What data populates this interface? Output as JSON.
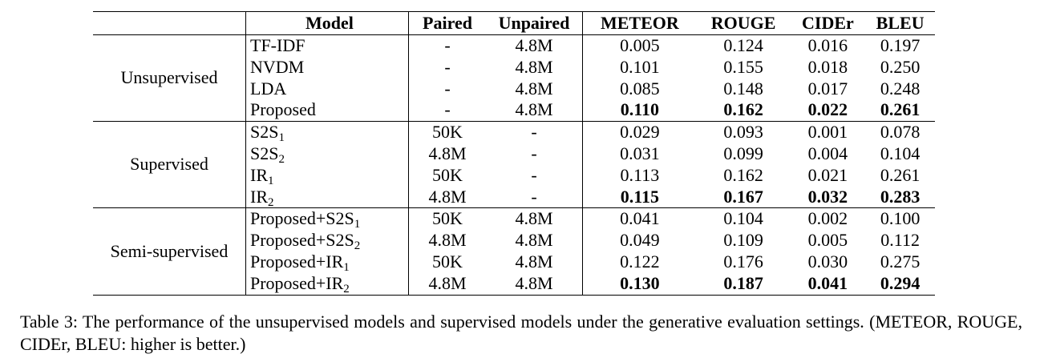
{
  "table": {
    "headers": [
      "Model",
      "Paired",
      "Unpaired",
      "METEOR",
      "ROUGE",
      "CIDEr",
      "BLEU"
    ],
    "groups": [
      {
        "name": "Unsupervised",
        "rows": [
          {
            "model": "TF-IDF",
            "sub": "",
            "paired": "-",
            "unpaired": "4.8M",
            "meteor": "0.005",
            "rouge": "0.124",
            "cider": "0.016",
            "bleu": "0.197"
          },
          {
            "model": "NVDM",
            "sub": "",
            "paired": "-",
            "unpaired": "4.8M",
            "meteor": "0.101",
            "rouge": "0.155",
            "cider": "0.018",
            "bleu": "0.250"
          },
          {
            "model": "LDA",
            "sub": "",
            "paired": "-",
            "unpaired": "4.8M",
            "meteor": "0.085",
            "rouge": "0.148",
            "cider": "0.017",
            "bleu": "0.248"
          },
          {
            "model": "Proposed",
            "sub": "",
            "paired": "-",
            "unpaired": "4.8M",
            "meteor": "0.110",
            "rouge": "0.162",
            "cider": "0.022",
            "bleu": "0.261",
            "bold": true
          }
        ]
      },
      {
        "name": "Supervised",
        "rows": [
          {
            "model": "S2S",
            "sub": "1",
            "paired": "50K",
            "unpaired": "-",
            "meteor": "0.029",
            "rouge": "0.093",
            "cider": "0.001",
            "bleu": "0.078"
          },
          {
            "model": "S2S",
            "sub": "2",
            "paired": "4.8M",
            "unpaired": "-",
            "meteor": "0.031",
            "rouge": "0.099",
            "cider": "0.004",
            "bleu": "0.104"
          },
          {
            "model": "IR",
            "sub": "1",
            "paired": "50K",
            "unpaired": "-",
            "meteor": "0.113",
            "rouge": "0.162",
            "cider": "0.021",
            "bleu": "0.261"
          },
          {
            "model": "IR",
            "sub": "2",
            "paired": "4.8M",
            "unpaired": "-",
            "meteor": "0.115",
            "rouge": "0.167",
            "cider": "0.032",
            "bleu": "0.283",
            "bold": true
          }
        ]
      },
      {
        "name": "Semi-supervised",
        "rows": [
          {
            "model": "Proposed+S2S",
            "sub": "1",
            "paired": "50K",
            "unpaired": "4.8M",
            "meteor": "0.041",
            "rouge": "0.104",
            "cider": "0.002",
            "bleu": "0.100"
          },
          {
            "model": "Proposed+S2S",
            "sub": "2",
            "paired": "4.8M",
            "unpaired": "4.8M",
            "meteor": "0.049",
            "rouge": "0.109",
            "cider": "0.005",
            "bleu": "0.112"
          },
          {
            "model": "Proposed+IR",
            "sub": "1",
            "paired": "50K",
            "unpaired": "4.8M",
            "meteor": "0.122",
            "rouge": "0.176",
            "cider": "0.030",
            "bleu": "0.275"
          },
          {
            "model": "Proposed+IR",
            "sub": "2",
            "paired": "4.8M",
            "unpaired": "4.8M",
            "meteor": "0.130",
            "rouge": "0.187",
            "cider": "0.041",
            "bleu": "0.294",
            "bold": true
          }
        ]
      }
    ]
  },
  "caption": "Table 3: The performance of the unsupervised models and supervised models under the generative evaluation settings. (METEOR, ROUGE, CIDEr, BLEU: higher is better.)"
}
